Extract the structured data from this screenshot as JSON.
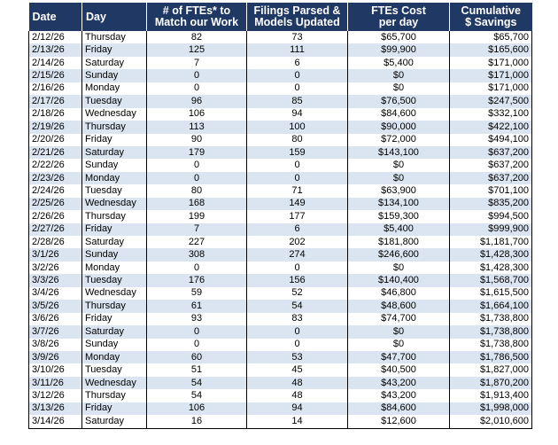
{
  "table": {
    "headers": [
      "Date",
      "Day",
      "# of FTEs* to\nMatch our Work",
      "Filings Parsed &\nModels Updated",
      "FTEs Cost\nper day",
      "Cumulative\n$ Savings"
    ],
    "rows": [
      [
        "2/12/26",
        "Thursday",
        "82",
        "73",
        "$65,700",
        "$65,700"
      ],
      [
        "2/13/26",
        "Friday",
        "125",
        "111",
        "$99,900",
        "$165,600"
      ],
      [
        "2/14/26",
        "Saturday",
        "7",
        "6",
        "$5,400",
        "$171,000"
      ],
      [
        "2/15/26",
        "Sunday",
        "0",
        "0",
        "$0",
        "$171,000"
      ],
      [
        "2/16/26",
        "Monday",
        "0",
        "0",
        "$0",
        "$171,000"
      ],
      [
        "2/17/26",
        "Tuesday",
        "96",
        "85",
        "$76,500",
        "$247,500"
      ],
      [
        "2/18/26",
        "Wednesday",
        "106",
        "94",
        "$84,600",
        "$332,100"
      ],
      [
        "2/19/26",
        "Thursday",
        "113",
        "100",
        "$90,000",
        "$422,100"
      ],
      [
        "2/20/26",
        "Friday",
        "90",
        "80",
        "$72,000",
        "$494,100"
      ],
      [
        "2/21/26",
        "Saturday",
        "179",
        "159",
        "$143,100",
        "$637,200"
      ],
      [
        "2/22/26",
        "Sunday",
        "0",
        "0",
        "$0",
        "$637,200"
      ],
      [
        "2/23/26",
        "Monday",
        "0",
        "0",
        "$0",
        "$637,200"
      ],
      [
        "2/24/26",
        "Tuesday",
        "80",
        "71",
        "$63,900",
        "$701,100"
      ],
      [
        "2/25/26",
        "Wednesday",
        "168",
        "149",
        "$134,100",
        "$835,200"
      ],
      [
        "2/26/26",
        "Thursday",
        "199",
        "177",
        "$159,300",
        "$994,500"
      ],
      [
        "2/27/26",
        "Friday",
        "7",
        "6",
        "$5,400",
        "$999,900"
      ],
      [
        "2/28/26",
        "Saturday",
        "227",
        "202",
        "$181,800",
        "$1,181,700"
      ],
      [
        "3/1/26",
        "Sunday",
        "308",
        "274",
        "$246,600",
        "$1,428,300"
      ],
      [
        "3/2/26",
        "Monday",
        "0",
        "0",
        "$0",
        "$1,428,300"
      ],
      [
        "3/3/26",
        "Tuesday",
        "176",
        "156",
        "$140,400",
        "$1,568,700"
      ],
      [
        "3/4/26",
        "Wednesday",
        "59",
        "52",
        "$46,800",
        "$1,615,500"
      ],
      [
        "3/5/26",
        "Thursday",
        "61",
        "54",
        "$48,600",
        "$1,664,100"
      ],
      [
        "3/6/26",
        "Friday",
        "93",
        "83",
        "$74,700",
        "$1,738,800"
      ],
      [
        "3/7/26",
        "Saturday",
        "0",
        "0",
        "$0",
        "$1,738,800"
      ],
      [
        "3/8/26",
        "Sunday",
        "0",
        "0",
        "$0",
        "$1,738,800"
      ],
      [
        "3/9/26",
        "Monday",
        "60",
        "53",
        "$47,700",
        "$1,786,500"
      ],
      [
        "3/10/26",
        "Tuesday",
        "51",
        "45",
        "$40,500",
        "$1,827,000"
      ],
      [
        "3/11/26",
        "Wednesday",
        "54",
        "48",
        "$43,200",
        "$1,870,200"
      ],
      [
        "3/12/26",
        "Thursday",
        "54",
        "48",
        "$43,200",
        "$1,913,400"
      ],
      [
        "3/13/26",
        "Friday",
        "106",
        "94",
        "$84,600",
        "$1,998,000"
      ],
      [
        "3/14/26",
        "Saturday",
        "16",
        "14",
        "$12,600",
        "$2,010,600"
      ]
    ]
  }
}
